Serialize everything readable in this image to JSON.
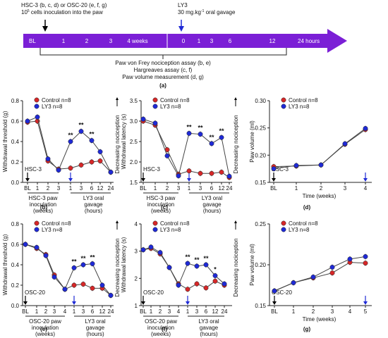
{
  "timeline": {
    "agent_label_1": "HSC-3 (b, c, d) or OSC-20 (e, f, g)",
    "agent_label_2_num": "10",
    "agent_label_2_exp": "5",
    "agent_label_2_rest": " cells inoculation into the paw",
    "drug_label_1": "LY3",
    "drug_label_2_pre": "30 mg.kg",
    "drug_label_2_exp": "-1",
    "drug_label_2_rest": " oral gavage",
    "arrow_color": "#7B1FD6",
    "ticks_weeks": [
      "BL",
      "1",
      "2",
      "3",
      "4 weeks"
    ],
    "ticks_hours": [
      "0",
      "1",
      "3",
      "6",
      "12"
    ],
    "end_label": "24 hours",
    "assays": [
      "Paw von Frey nociception assay (b, e)",
      "Hargreaves assay (c, f)",
      "Paw volume measurement (d, g)"
    ],
    "panel_label": "(a)"
  },
  "legend": {
    "control": "Control n=8",
    "ly3": "LY3 n=8"
  },
  "colors": {
    "control": "#D62728",
    "ly3": "#1F2AD6",
    "drug_arrow": "#1F2AD6"
  },
  "chart_data": [
    {
      "id": "b",
      "type": "line",
      "panel_label": "(b)",
      "ylabel": "Withdrawal threshold (g)",
      "ylim": [
        0,
        0.8
      ],
      "yticks": [
        "0.0",
        "0.2",
        "0.4",
        "0.6",
        "0.8"
      ],
      "categories": [
        "BL",
        "1",
        "2",
        "3",
        "1",
        "3",
        "6",
        "12",
        "24"
      ],
      "series": [
        {
          "name": "Control n=8",
          "values": [
            0.59,
            0.6,
            0.21,
            0.13,
            0.14,
            0.17,
            0.2,
            0.21,
            0.1
          ]
        },
        {
          "name": "LY3 n=8",
          "values": [
            0.6,
            0.64,
            0.23,
            0.12,
            0.4,
            0.5,
            0.41,
            0.3,
            0.1
          ]
        }
      ],
      "significance": [
        null,
        null,
        null,
        null,
        "**",
        "**",
        "**",
        null,
        null
      ],
      "right_label": "Decreasing nociception",
      "cell_label": "HSC-3",
      "group1_label": [
        "HSC-3 paw",
        "inoculation",
        "(weeks)"
      ],
      "group2_label": [
        "LY3 oral",
        "gavage",
        "(hours)"
      ]
    },
    {
      "id": "c",
      "type": "line",
      "panel_label": "(c)",
      "ylabel": "Withdrawal latency (s)",
      "ylim": [
        1.5,
        3.5
      ],
      "yticks": [
        "1.5",
        "2.0",
        "2.5",
        "3.0",
        "3.5"
      ],
      "categories": [
        "BL",
        "1",
        "2",
        "3",
        "1",
        "3",
        "6",
        "12",
        "24"
      ],
      "series": [
        {
          "name": "Control n=8",
          "values": [
            3.0,
            2.9,
            2.3,
            1.7,
            1.78,
            1.72,
            1.72,
            1.75,
            1.62
          ]
        },
        {
          "name": "LY3 n=8",
          "values": [
            3.05,
            2.95,
            2.15,
            1.66,
            2.7,
            2.68,
            2.45,
            2.6,
            1.65
          ]
        }
      ],
      "significance": [
        null,
        null,
        null,
        null,
        "**",
        "**",
        "**",
        "**",
        null
      ],
      "right_label": "Decreasing nociception",
      "cell_label": "HSC-3",
      "group1_label": [
        "HSC-3 paw",
        "inoculation",
        "(weeks)"
      ],
      "group2_label": [
        "LY3 oral",
        "gavage",
        "(hours)"
      ]
    },
    {
      "id": "d",
      "type": "line",
      "panel_label": "(d)",
      "ylabel": "Paw volume (ml)",
      "xlabel": "Time (weeks)",
      "ylim": [
        0.15,
        0.3
      ],
      "yticks": [
        "0.15",
        "0.20",
        "0.25",
        "0.30"
      ],
      "categories": [
        "BL",
        "1",
        "2",
        "3",
        "4"
      ],
      "series": [
        {
          "name": "Control n=8",
          "values": [
            0.179,
            0.18,
            0.182,
            0.22,
            0.247
          ]
        },
        {
          "name": "LY3 n=8",
          "values": [
            0.175,
            0.181,
            0.182,
            0.221,
            0.249
          ]
        }
      ],
      "cell_label": "HSC-3"
    },
    {
      "id": "e",
      "type": "line",
      "panel_label": "(e)",
      "ylabel": "Withdrawal threshold (g)",
      "ylim": [
        0,
        0.8
      ],
      "yticks": [
        "0.0",
        "0.2",
        "0.4",
        "0.6",
        "0.8"
      ],
      "categories": [
        "BL",
        "1",
        "2",
        "3",
        "4",
        "1",
        "3",
        "6",
        "12",
        "24"
      ],
      "series": [
        {
          "name": "Control n=8",
          "values": [
            0.6,
            0.56,
            0.5,
            0.3,
            0.16,
            0.2,
            0.21,
            0.17,
            0.17,
            0.1
          ]
        },
        {
          "name": "LY3 n=8",
          "values": [
            0.6,
            0.57,
            0.49,
            0.28,
            0.16,
            0.37,
            0.4,
            0.41,
            0.2,
            0.1
          ]
        }
      ],
      "significance": [
        null,
        null,
        null,
        null,
        null,
        "**",
        "**",
        "**",
        null,
        null
      ],
      "right_label": "Decreasing nociception",
      "cell_label": "OSC-20",
      "group1_label": [
        "OSC-20 paw",
        "inoculation",
        "(weeks)"
      ],
      "group2_label": [
        "LY3 oral",
        "gavage",
        "(hours)"
      ]
    },
    {
      "id": "f",
      "type": "line",
      "panel_label": "(f)",
      "ylabel": "Withdrawal latency (s)",
      "ylim": [
        1,
        4
      ],
      "yticks": [
        "1",
        "2",
        "3",
        "4"
      ],
      "categories": [
        "BL",
        "1",
        "2",
        "3",
        "4",
        "1",
        "3",
        "6",
        "12",
        "24"
      ],
      "series": [
        {
          "name": "Control n=8",
          "values": [
            3.05,
            3.1,
            2.9,
            2.4,
            1.8,
            1.6,
            1.8,
            1.65,
            1.9,
            1.75
          ]
        },
        {
          "name": "LY3 n=8",
          "values": [
            3.05,
            3.15,
            2.95,
            2.4,
            1.75,
            2.55,
            2.45,
            2.5,
            2.1,
            1.8
          ]
        }
      ],
      "significance": [
        null,
        null,
        null,
        null,
        null,
        "**",
        "**",
        "**",
        "*",
        null
      ],
      "right_label": "Decreasing nociception",
      "cell_label": "OSC-20",
      "group1_label": [
        "OSC-20 paw",
        "inoculation",
        "(weeks)"
      ],
      "group2_label": [
        "LY3 oral",
        "gavage",
        "(hours)"
      ]
    },
    {
      "id": "g",
      "type": "line",
      "panel_label": "(g)",
      "ylabel": "Paw volume (ml)",
      "xlabel": "Time (weeks)",
      "ylim": [
        0.15,
        0.25
      ],
      "yticks": [
        "0.15",
        "0.20",
        "0.25"
      ],
      "categories": [
        "BL",
        "1",
        "2",
        "3",
        "4",
        "5"
      ],
      "series": [
        {
          "name": "Control n=8",
          "values": [
            0.168,
            0.178,
            0.184,
            0.19,
            0.203,
            0.202
          ]
        },
        {
          "name": "LY3 n=8",
          "values": [
            0.168,
            0.178,
            0.185,
            0.197,
            0.207,
            0.21
          ]
        }
      ],
      "cell_label": "OSC-20"
    }
  ]
}
